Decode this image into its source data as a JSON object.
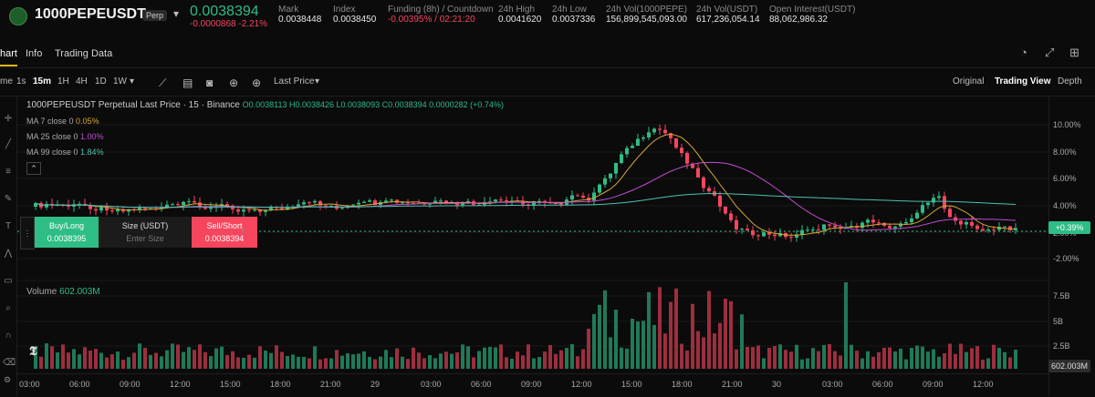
{
  "header": {
    "symbol": "1000PEPEUSDT",
    "badge": "Perp",
    "last_price": "0.0038394",
    "change": "-0.0000868 -2.21%",
    "stats": [
      {
        "label": "Mark",
        "value": "0.0038448"
      },
      {
        "label": "Index",
        "value": "0.0038450"
      },
      {
        "label": "Funding (8h) / Countdown",
        "value": "-0.00395% / 02:21:20"
      },
      {
        "label": "24h High",
        "value": "0.0041620"
      },
      {
        "label": "24h Low",
        "value": "0.0037336"
      },
      {
        "label": "24h Vol(1000PEPE)",
        "value": "156,899,545,093.00"
      },
      {
        "label": "24h Vol(USDT)",
        "value": "617,236,054.14"
      },
      {
        "label": "Open Interest(USDT)",
        "value": "88,062,986.32"
      }
    ]
  },
  "nav": {
    "tabs": [
      "hart",
      "Info",
      "Trading Data"
    ]
  },
  "toolbar": {
    "intervals": [
      "me",
      "1s",
      "15m",
      "1H",
      "4H",
      "1D",
      "1W"
    ],
    "price_type": "Last Price",
    "views": [
      "Original",
      "Trading View",
      "Depth"
    ]
  },
  "legend": {
    "title": "1000PEPEUSDT Perpetual Last Price · 15 · Binance",
    "ohlc": "O0.0038113 H0.0038426 L0.0038093 C0.0038394 0.0000282 (+0.74%)",
    "ma7": "MA 7 close 0",
    "ma7_val": "0.05%",
    "ma25": "MA 25 close 0",
    "ma25_val": "1.00%",
    "ma99": "MA 99 close 0",
    "ma99_val": "1.84%"
  },
  "order": {
    "buy_label": "Buy/Long",
    "buy_price": "0.0038395",
    "size_label": "Size (USDT)",
    "size_placeholder": "Enter Size",
    "sell_label": "Sell/Short",
    "sell_price": "0.0038394"
  },
  "volume": {
    "label": "Volume",
    "value": "602.003M",
    "tag": "602.003M"
  },
  "price_axis": [
    "10.00%",
    "8.00%",
    "6.00%",
    "4.00%",
    "2.00%",
    "",
    "-2.00%"
  ],
  "price_tag": "+0.39%",
  "vol_axis": [
    "7.5B",
    "5B",
    "2.5B"
  ],
  "time_axis": [
    "03:00",
    "06:00",
    "09:00",
    "12:00",
    "15:00",
    "18:00",
    "21:00",
    "29",
    "03:00",
    "06:00",
    "09:00",
    "12:00",
    "15:00",
    "18:00",
    "21:00",
    "30",
    "03:00",
    "06:00",
    "09:00",
    "12:00"
  ]
}
